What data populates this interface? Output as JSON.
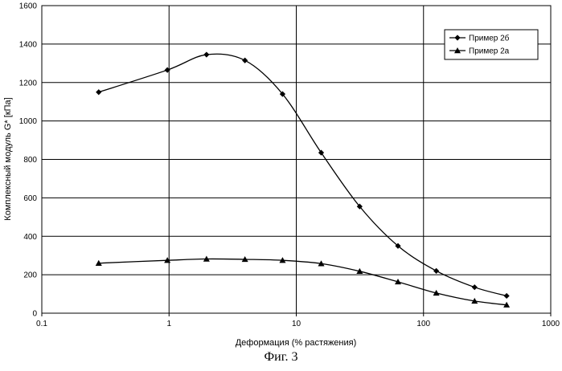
{
  "chart_data": {
    "type": "line",
    "x_scale": "log",
    "xlim": [
      0.1,
      1000
    ],
    "ylim": [
      0,
      1600
    ],
    "x_ticks": [
      0.1,
      1,
      10,
      100,
      1000
    ],
    "x_tick_labels": [
      "0.1",
      "1",
      "10",
      "100",
      "1000"
    ],
    "y_ticks": [
      0,
      200,
      400,
      600,
      800,
      1000,
      1200,
      1400,
      1600
    ],
    "y_tick_labels": [
      "0",
      "200",
      "400",
      "600",
      "800",
      "1000",
      "1200",
      "1400",
      "1600"
    ],
    "xlabel": "Деформация (% растяжения)",
    "ylabel": "Комплексный модуль G* [кПа]",
    "grid": true,
    "legend_position": "top-right",
    "series": [
      {
        "name": "Пример 2б",
        "marker": "diamond",
        "x": [
          0.28,
          0.97,
          1.97,
          3.95,
          7.8,
          15.7,
          31.5,
          63,
          126,
          252,
          450
        ],
        "y": [
          1150,
          1265,
          1345,
          1315,
          1140,
          835,
          555,
          350,
          220,
          135,
          90
        ]
      },
      {
        "name": "Пример 2а",
        "marker": "triangle",
        "x": [
          0.28,
          0.97,
          1.97,
          3.95,
          7.8,
          15.7,
          31.5,
          63,
          126,
          252,
          450
        ],
        "y": [
          260,
          275,
          282,
          280,
          275,
          258,
          218,
          163,
          105,
          63,
          43
        ]
      }
    ]
  },
  "caption": "Фиг. 3"
}
